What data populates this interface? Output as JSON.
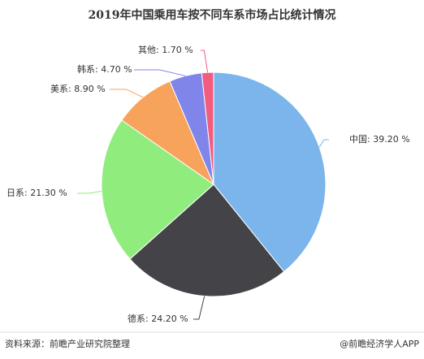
{
  "chart_data": {
    "type": "pie",
    "title": "2019年中国乘用车按不同车系市场占比统计情况",
    "labels": [
      "中国: 39.20 %",
      "德系: 24.20 %",
      "日系: 21.30 %",
      "美系: 8.90 %",
      "韩系: 4.70 %",
      "其他: 1.70 %"
    ],
    "values": [
      39.2,
      24.2,
      21.3,
      8.9,
      4.7,
      1.7
    ],
    "colors": [
      "#7cb5ec",
      "#434348",
      "#90ed7d",
      "#f7a35c",
      "#8085e9",
      "#f15c80"
    ]
  },
  "footer": {
    "source": "资料来源：前瞻产业研究院整理",
    "credit": "@前瞻经济学人APP"
  }
}
